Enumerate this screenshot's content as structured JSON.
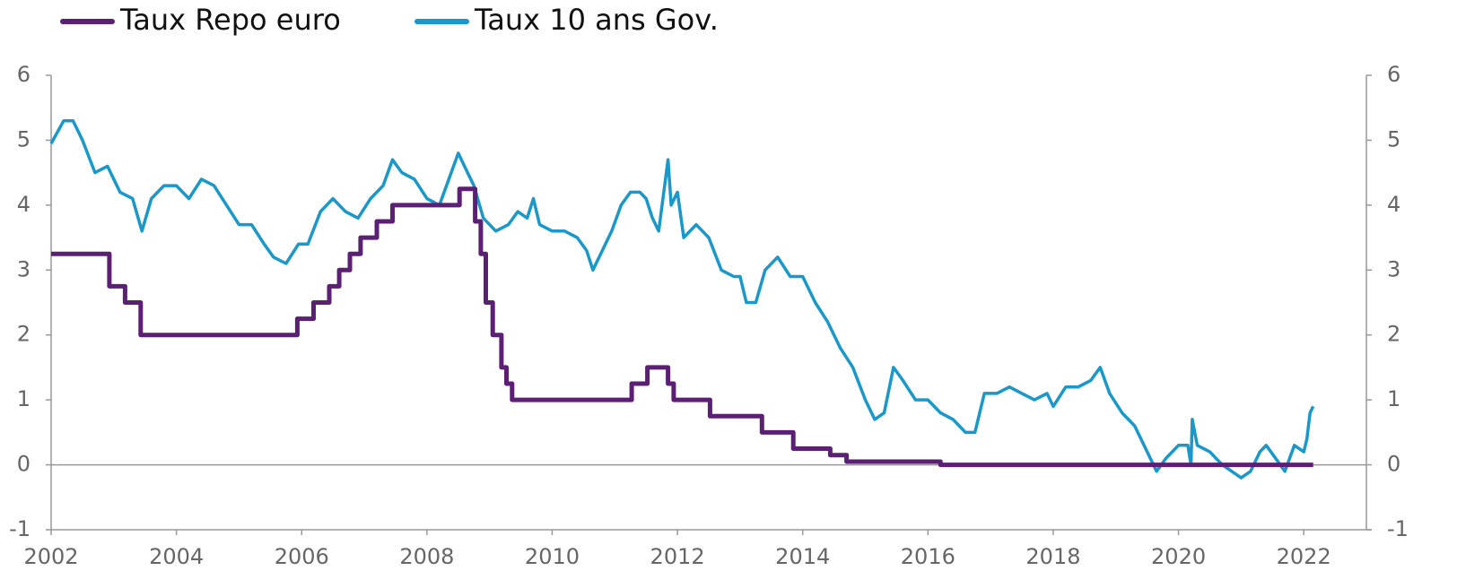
{
  "chart_data": {
    "type": "line",
    "xlim": [
      2002,
      2023
    ],
    "xticks": [
      2002,
      2004,
      2006,
      2008,
      2010,
      2012,
      2014,
      2016,
      2018,
      2020,
      2022
    ],
    "ylim": [
      -1,
      6
    ],
    "yticks": [
      -1,
      0,
      1,
      2,
      3,
      4,
      5,
      6
    ],
    "y2lim": [
      -1,
      6
    ],
    "y2ticks": [
      -1,
      0,
      1,
      2,
      3,
      4,
      5,
      6
    ],
    "legend": "top-left",
    "series": [
      {
        "name": "Taux Repo euro",
        "color": "#5b1f74",
        "x": [
          2002.0,
          2002.93,
          2002.93,
          2003.18,
          2003.18,
          2003.43,
          2003.43,
          2005.93,
          2005.93,
          2006.19,
          2006.19,
          2006.44,
          2006.44,
          2006.6,
          2006.6,
          2006.77,
          2006.77,
          2006.94,
          2006.94,
          2007.2,
          2007.2,
          2007.45,
          2007.45,
          2008.52,
          2008.52,
          2008.77,
          2008.77,
          2008.86,
          2008.86,
          2008.94,
          2008.94,
          2009.05,
          2009.05,
          2009.19,
          2009.19,
          2009.27,
          2009.27,
          2009.36,
          2009.36,
          2011.27,
          2011.27,
          2011.52,
          2011.52,
          2011.85,
          2011.85,
          2011.94,
          2011.94,
          2012.52,
          2012.52,
          2013.35,
          2013.35,
          2013.85,
          2013.85,
          2014.44,
          2014.44,
          2014.7,
          2014.7,
          2016.2,
          2016.2,
          2022.15
        ],
        "values": [
          3.25,
          3.25,
          2.75,
          2.75,
          2.5,
          2.5,
          2.0,
          2.0,
          2.25,
          2.25,
          2.5,
          2.5,
          2.75,
          2.75,
          3.0,
          3.0,
          3.25,
          3.25,
          3.5,
          3.5,
          3.75,
          3.75,
          4.0,
          4.0,
          4.25,
          4.25,
          3.75,
          3.75,
          3.25,
          3.25,
          2.5,
          2.5,
          2.0,
          2.0,
          1.5,
          1.5,
          1.25,
          1.25,
          1.0,
          1.0,
          1.25,
          1.25,
          1.5,
          1.5,
          1.25,
          1.25,
          1.0,
          1.0,
          0.75,
          0.75,
          0.5,
          0.5,
          0.25,
          0.25,
          0.15,
          0.15,
          0.05,
          0.05,
          0.0,
          0.0
        ]
      },
      {
        "name": "Taux 10 ans Gov.",
        "color": "#1a98c9",
        "x": [
          2002.0,
          2002.2,
          2002.35,
          2002.5,
          2002.7,
          2002.9,
          2003.1,
          2003.3,
          2003.45,
          2003.6,
          2003.8,
          2004.0,
          2004.2,
          2004.4,
          2004.6,
          2004.8,
          2005.0,
          2005.2,
          2005.4,
          2005.55,
          2005.75,
          2005.95,
          2006.1,
          2006.3,
          2006.5,
          2006.7,
          2006.9,
          2007.1,
          2007.3,
          2007.45,
          2007.6,
          2007.8,
          2008.0,
          2008.2,
          2008.35,
          2008.5,
          2008.6,
          2008.75,
          2008.9,
          2009.0,
          2009.1,
          2009.3,
          2009.45,
          2009.6,
          2009.7,
          2009.8,
          2010.0,
          2010.2,
          2010.4,
          2010.55,
          2010.65,
          2010.8,
          2010.95,
          2011.1,
          2011.25,
          2011.4,
          2011.5,
          2011.6,
          2011.7,
          2011.85,
          2011.9,
          2012.0,
          2012.1,
          2012.3,
          2012.5,
          2012.7,
          2012.9,
          2013.0,
          2013.1,
          2013.25,
          2013.4,
          2013.6,
          2013.8,
          2014.0,
          2014.2,
          2014.4,
          2014.6,
          2014.8,
          2015.0,
          2015.15,
          2015.3,
          2015.45,
          2015.6,
          2015.8,
          2016.0,
          2016.2,
          2016.4,
          2016.6,
          2016.75,
          2016.9,
          2017.1,
          2017.3,
          2017.5,
          2017.7,
          2017.9,
          2018.0,
          2018.2,
          2018.4,
          2018.6,
          2018.75,
          2018.9,
          2019.1,
          2019.3,
          2019.5,
          2019.65,
          2019.8,
          2020.0,
          2020.15,
          2020.2,
          2020.22,
          2020.3,
          2020.5,
          2020.7,
          2020.85,
          2021.0,
          2021.15,
          2021.3,
          2021.4,
          2021.55,
          2021.7,
          2021.85,
          2022.0,
          2022.05,
          2022.1,
          2022.15
        ],
        "values": [
          4.95,
          5.3,
          5.3,
          5.0,
          4.5,
          4.6,
          4.2,
          4.1,
          3.6,
          4.1,
          4.3,
          4.3,
          4.1,
          4.4,
          4.3,
          4.0,
          3.7,
          3.7,
          3.4,
          3.2,
          3.1,
          3.4,
          3.4,
          3.9,
          4.1,
          3.9,
          3.8,
          4.1,
          4.3,
          4.7,
          4.5,
          4.4,
          4.1,
          4.0,
          4.4,
          4.8,
          4.6,
          4.3,
          3.8,
          3.7,
          3.6,
          3.7,
          3.9,
          3.8,
          4.1,
          3.7,
          3.6,
          3.6,
          3.5,
          3.3,
          3.0,
          3.3,
          3.6,
          4.0,
          4.2,
          4.2,
          4.1,
          3.8,
          3.6,
          4.7,
          4.0,
          4.2,
          3.5,
          3.7,
          3.5,
          3.0,
          2.9,
          2.9,
          2.5,
          2.5,
          3.0,
          3.2,
          2.9,
          2.9,
          2.5,
          2.2,
          1.8,
          1.5,
          1.0,
          0.7,
          0.8,
          1.5,
          1.3,
          1.0,
          1.0,
          0.8,
          0.7,
          0.5,
          0.5,
          1.1,
          1.1,
          1.2,
          1.1,
          1.0,
          1.1,
          0.9,
          1.2,
          1.2,
          1.3,
          1.5,
          1.1,
          0.8,
          0.6,
          0.2,
          -0.1,
          0.1,
          0.3,
          0.3,
          0.0,
          0.7,
          0.3,
          0.2,
          0.0,
          -0.1,
          -0.2,
          -0.1,
          0.2,
          0.3,
          0.1,
          -0.1,
          0.3,
          0.2,
          0.4,
          0.8,
          0.9
        ]
      }
    ]
  }
}
